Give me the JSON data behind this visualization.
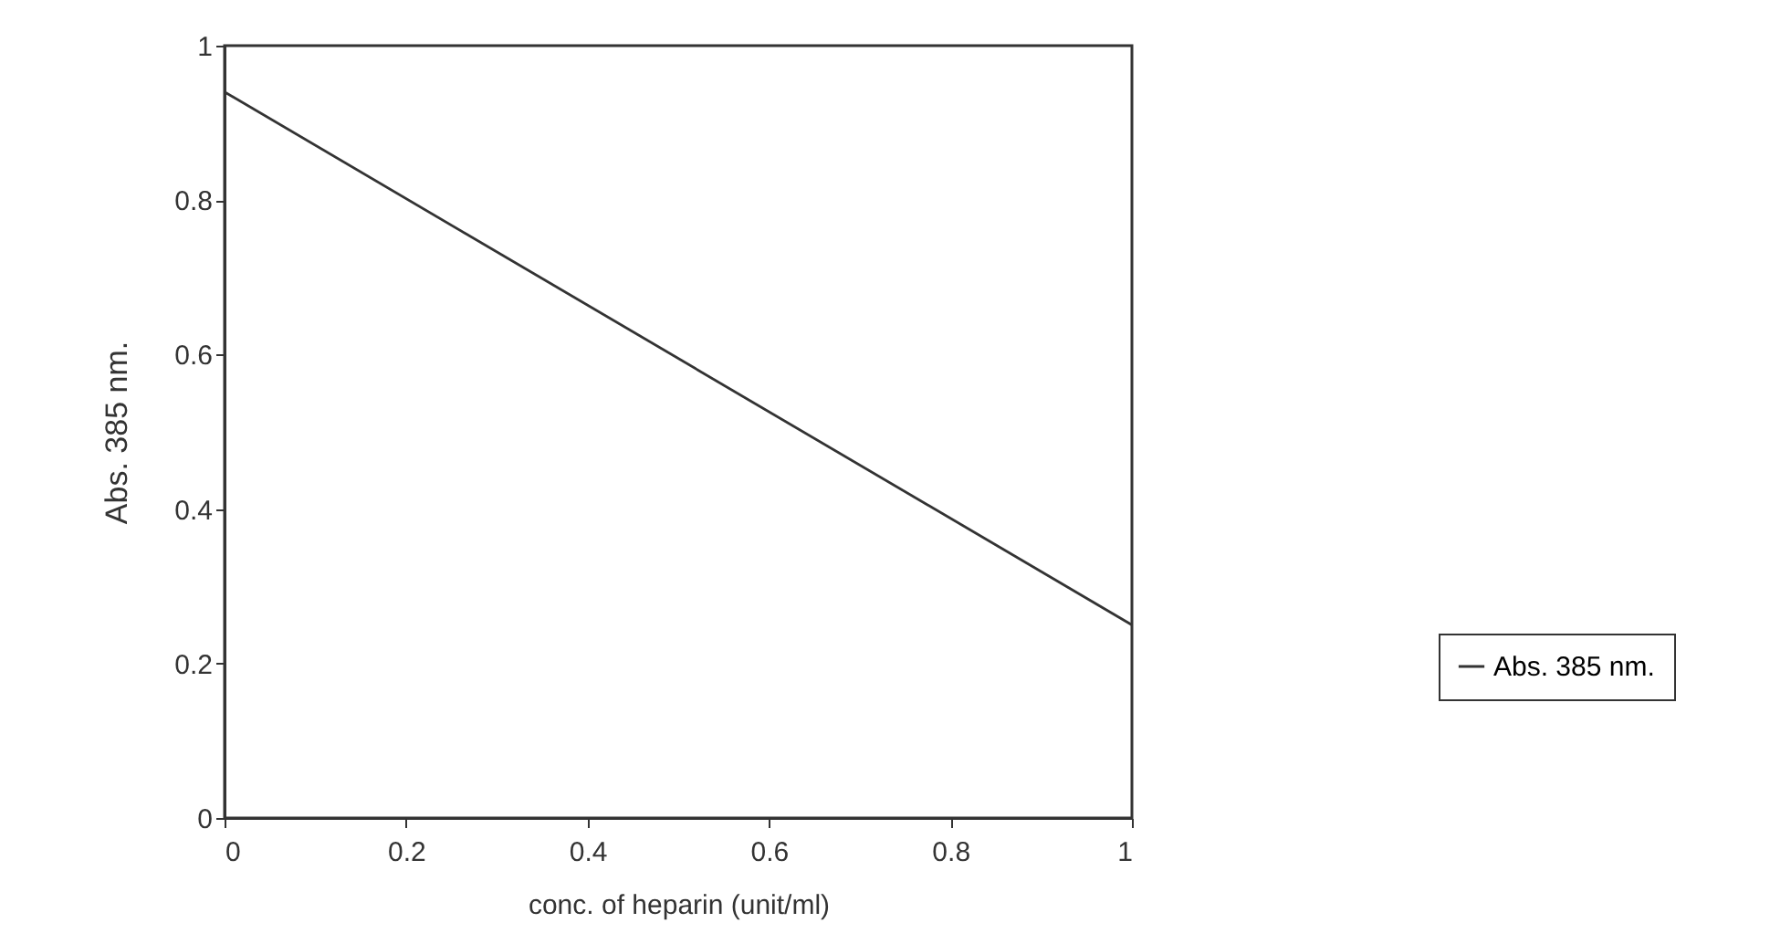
{
  "chart_data": {
    "type": "line",
    "xlabel": "conc. of heparin (unit/ml)",
    "ylabel": "Abs. 385 nm.",
    "x": [
      0,
      1
    ],
    "series": [
      {
        "name": "Abs. 385 nm.",
        "color": "#333333",
        "values": [
          0.94,
          0.25
        ]
      }
    ],
    "xlim": [
      0,
      1
    ],
    "xticks": [
      0,
      0.2,
      0.4,
      0.6,
      0.8,
      1
    ],
    "ylim": [
      0,
      1
    ],
    "yticks": [
      0,
      0.2,
      0.4,
      0.6,
      0.8,
      1
    ],
    "grid": false,
    "legend": "right",
    "marker": "none",
    "line_style": "solid"
  }
}
